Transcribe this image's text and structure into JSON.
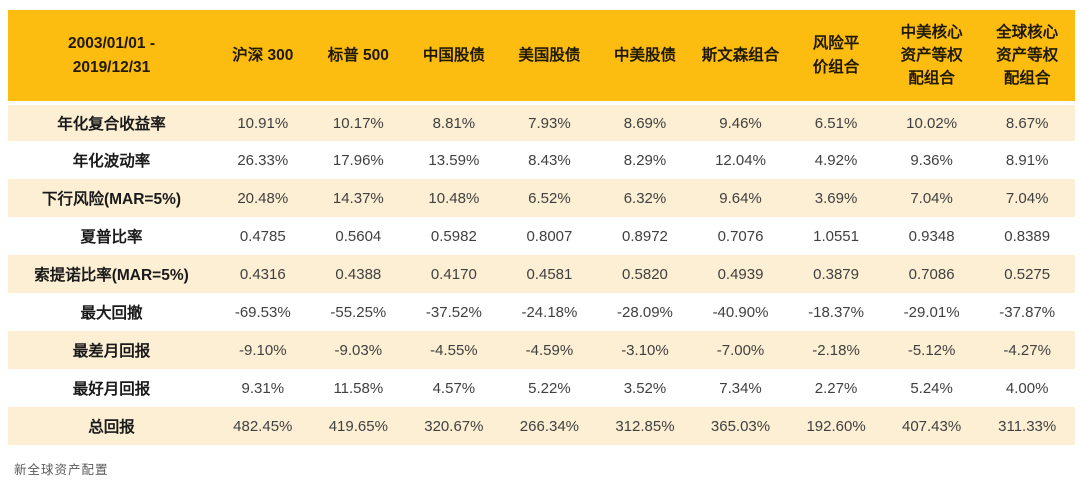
{
  "chart_data": {
    "type": "table",
    "period": "2003/01/01 -\n2019/12/31",
    "columns": [
      "沪深 300",
      "标普 500",
      "中国股债",
      "美国股债",
      "中美股债",
      "斯文森组合",
      "风险平\n价组合",
      "中美核心\n资产等权\n配组合",
      "全球核心\n资产等权\n配组合"
    ],
    "rows": [
      {
        "label": "年化复合收益率",
        "values": [
          "10.91%",
          "10.17%",
          "8.81%",
          "7.93%",
          "8.69%",
          "9.46%",
          "6.51%",
          "10.02%",
          "8.67%"
        ]
      },
      {
        "label": "年化波动率",
        "values": [
          "26.33%",
          "17.96%",
          "13.59%",
          "8.43%",
          "8.29%",
          "12.04%",
          "4.92%",
          "9.36%",
          "8.91%"
        ]
      },
      {
        "label": "下行风险(MAR=5%)",
        "values": [
          "20.48%",
          "14.37%",
          "10.48%",
          "6.52%",
          "6.32%",
          "9.64%",
          "3.69%",
          "7.04%",
          "7.04%"
        ]
      },
      {
        "label": "夏普比率",
        "values": [
          "0.4785",
          "0.5604",
          "0.5982",
          "0.8007",
          "0.8972",
          "0.7076",
          "1.0551",
          "0.9348",
          "0.8389"
        ]
      },
      {
        "label": "索提诺比率(MAR=5%)",
        "values": [
          "0.4316",
          "0.4388",
          "0.4170",
          "0.4581",
          "0.5820",
          "0.4939",
          "0.3879",
          "0.7086",
          "0.5275"
        ]
      },
      {
        "label": "最大回撤",
        "values": [
          "-69.53%",
          "-55.25%",
          "-37.52%",
          "-24.18%",
          "-28.09%",
          "-40.90%",
          "-18.37%",
          "-29.01%",
          "-37.87%"
        ]
      },
      {
        "label": "最差月回报",
        "values": [
          "-9.10%",
          "-9.03%",
          "-4.55%",
          "-4.59%",
          "-3.10%",
          "-7.00%",
          "-2.18%",
          "-5.12%",
          "-4.27%"
        ]
      },
      {
        "label": "最好月回报",
        "values": [
          "9.31%",
          "11.58%",
          "4.57%",
          "5.22%",
          "3.52%",
          "7.34%",
          "2.27%",
          "5.24%",
          "4.00%"
        ]
      },
      {
        "label": "总回报",
        "values": [
          "482.45%",
          "419.65%",
          "320.67%",
          "266.34%",
          "312.85%",
          "365.03%",
          "192.60%",
          "407.43%",
          "311.33%"
        ]
      }
    ],
    "layout": {
      "header_bg": "#FCBD10",
      "band_bg": "#FCEFD4",
      "header_text_color": "#201a04",
      "data_text_color": "#404040"
    }
  },
  "footer": {
    "watermark": "新全球资产配置"
  }
}
